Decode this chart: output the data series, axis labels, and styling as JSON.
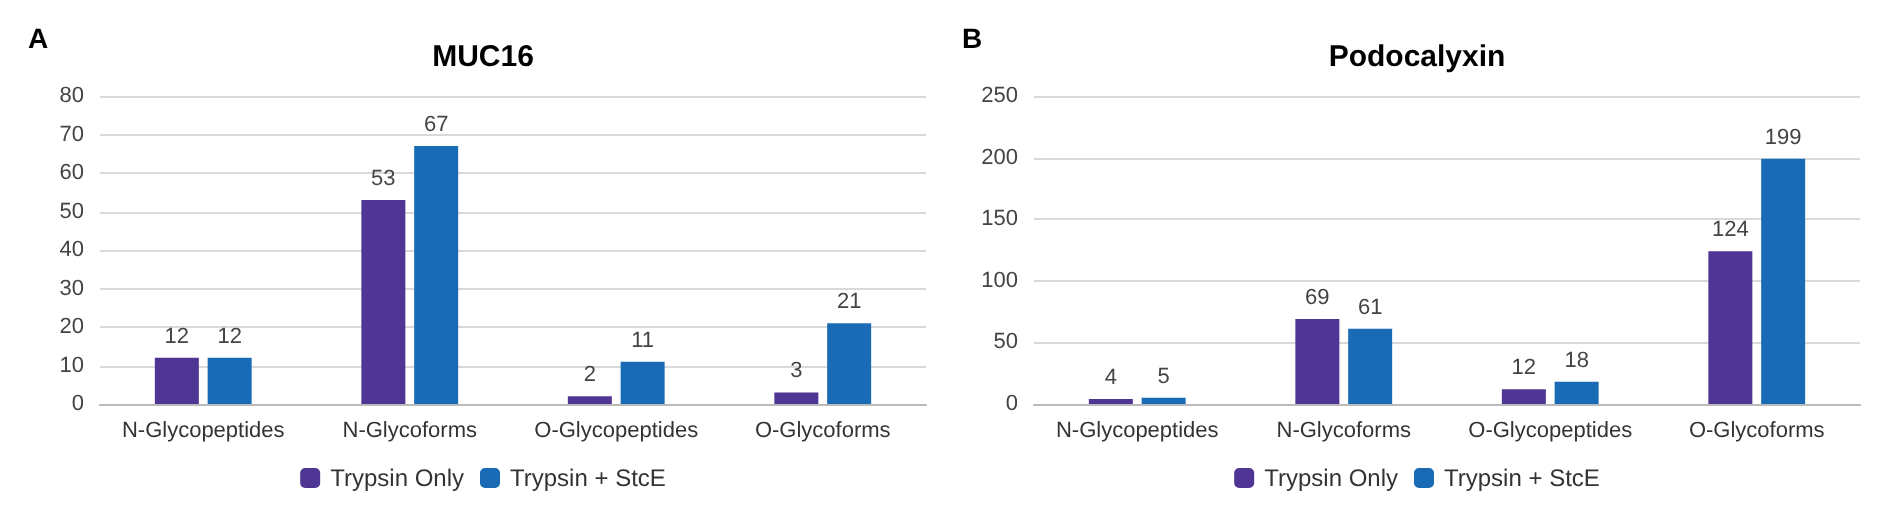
{
  "chart_data": [
    {
      "type": "bar",
      "title": "MUC16",
      "annotations": [
        "A"
      ],
      "categories": [
        "N-Glycopeptides",
        "N-Glycoforms",
        "O-Glycopeptides",
        "O-Glycoforms"
      ],
      "series": [
        {
          "name": "Trypsin Only",
          "color": "#4f3594",
          "values": [
            12,
            53,
            2,
            3
          ]
        },
        {
          "name": "Trypsin + StcE",
          "color": "#1a6bb5",
          "values": [
            12,
            67,
            11,
            21
          ]
        }
      ],
      "ylim": [
        0,
        80
      ],
      "yticks": [
        0,
        10,
        20,
        30,
        40,
        50,
        60,
        70,
        80
      ],
      "grid": "y",
      "legend": "bottom",
      "data_labels": true
    },
    {
      "type": "bar",
      "title": "Podocalyxin",
      "annotations": [
        "B"
      ],
      "categories": [
        "N-Glycopeptides",
        "N-Glycoforms",
        "O-Glycopeptides",
        "O-Glycoforms"
      ],
      "series": [
        {
          "name": "Trypsin Only",
          "color": "#4f3594",
          "values": [
            4,
            69,
            12,
            124
          ]
        },
        {
          "name": "Trypsin + StcE",
          "color": "#1a6bb5",
          "values": [
            5,
            61,
            18,
            199
          ]
        }
      ],
      "ylim": [
        0,
        250
      ],
      "yticks": [
        0,
        50,
        100,
        150,
        200,
        250
      ],
      "grid": "y",
      "legend": "bottom",
      "data_labels": true
    }
  ]
}
